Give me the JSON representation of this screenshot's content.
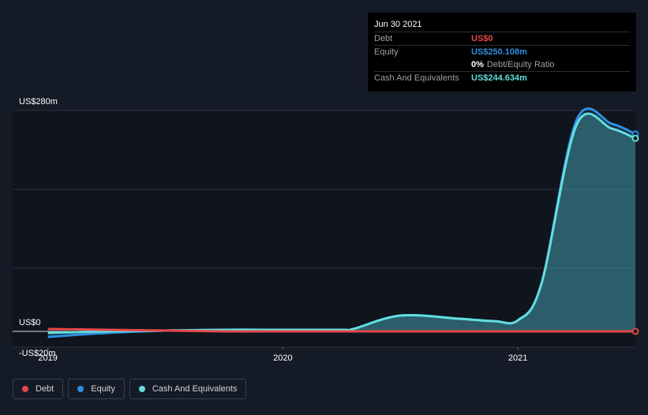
{
  "tooltip": {
    "date": "Jun 30 2021",
    "rows": [
      {
        "label": "Debt",
        "value": "US$0",
        "color": "#e64848"
      },
      {
        "label": "Equity",
        "value": "US$250.108m",
        "color": "#2f8fe0"
      },
      {
        "ratio_pct": "0%",
        "ratio_label": "Debt/Equity Ratio"
      },
      {
        "label": "Cash And Equivalents",
        "value": "US$244.634m",
        "color": "#62dede"
      }
    ]
  },
  "legend": [
    {
      "label": "Debt",
      "color": "#e64848"
    },
    {
      "label": "Equity",
      "color": "#2f8fe0"
    },
    {
      "label": "Cash And Equivalents",
      "color": "#62dede"
    }
  ],
  "chart_data": {
    "type": "area",
    "y_tick_labels": [
      "US$280m",
      "US$0",
      "-US$20m"
    ],
    "x_tick_labels": [
      "2019",
      "2020",
      "2021"
    ],
    "x_ticks": [
      2019.0,
      2020.0,
      2021.0
    ],
    "ylim": [
      -20,
      280
    ],
    "xlim": [
      2018.85,
      2021.5
    ],
    "grid": true,
    "legend_position": "bottom-left",
    "series": [
      {
        "name": "Debt",
        "color": "#e64848",
        "x": [
          2019.0,
          2019.25,
          2019.5,
          2019.75,
          2020.0,
          2020.25,
          2020.5,
          2020.75,
          2021.0,
          2021.25,
          2021.5
        ],
        "values": [
          3,
          2,
          1,
          0,
          0,
          0,
          0,
          0,
          0,
          0,
          0
        ]
      },
      {
        "name": "Equity",
        "color": "#2f8fe0",
        "x": [
          2019.0,
          2019.25,
          2019.5,
          2019.75,
          2020.0,
          2020.25,
          2020.3,
          2020.5,
          2020.75,
          2020.9,
          2021.0,
          2021.1,
          2021.25,
          2021.4,
          2021.5
        ],
        "values": [
          -7,
          -2,
          1,
          2,
          2,
          2,
          3,
          20,
          16,
          13,
          14,
          60,
          268,
          263,
          250.108
        ]
      },
      {
        "name": "Cash And Equivalents",
        "color": "#62dede",
        "x": [
          2019.0,
          2019.25,
          2019.5,
          2019.75,
          2020.0,
          2020.25,
          2020.3,
          2020.5,
          2020.75,
          2020.9,
          2021.0,
          2021.1,
          2021.25,
          2021.4,
          2021.5
        ],
        "values": [
          -2,
          0,
          1,
          2,
          2,
          2,
          3,
          20,
          16,
          13,
          14,
          60,
          262,
          257,
          244.634
        ]
      }
    ]
  }
}
